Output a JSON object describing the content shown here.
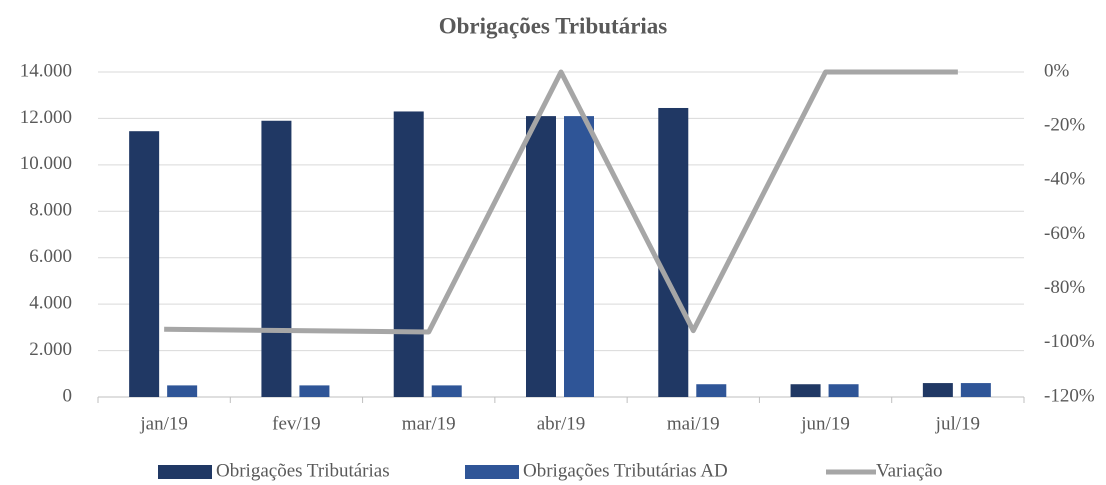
{
  "chart_data": {
    "type": "bar",
    "title": "Obrigações Tributárias",
    "categories": [
      "jan/19",
      "fev/19",
      "mar/19",
      "abr/19",
      "mai/19",
      "jun/19",
      "jul/19"
    ],
    "series": [
      {
        "name": "Obrigações Tributárias",
        "color": "#203864",
        "values": [
          11450,
          11900,
          12300,
          12100,
          12450,
          550,
          600
        ]
      },
      {
        "name": "Obrigações Tributárias AD",
        "color": "#2f5597",
        "values": [
          500,
          500,
          500,
          12100,
          550,
          550,
          600
        ]
      },
      {
        "name": "Variação",
        "type": "line",
        "axis": "y2",
        "color": "#a6a6a6",
        "values": [
          -95,
          -95.5,
          -96,
          0,
          -95.5,
          0,
          0
        ]
      }
    ],
    "ylim": [
      0,
      14000
    ],
    "yticks": [
      0,
      {
        "value": 2000,
        "label": "2.000"
      },
      {
        "value": 4000,
        "label": "4.000"
      },
      {
        "value": 6000,
        "label": "6.000"
      },
      {
        "value": 8000,
        "label": "8.000"
      },
      {
        "value": 10000,
        "label": "10.000"
      },
      {
        "value": 12000,
        "label": "12.000"
      },
      {
        "value": 14000,
        "label": "14.000"
      }
    ],
    "y2lim": [
      -120,
      0
    ],
    "y2ticks": [
      {
        "value": -120,
        "label": "-120%"
      },
      {
        "value": -100,
        "label": "-100%"
      },
      {
        "value": -80,
        "label": "-80%"
      },
      {
        "value": -60,
        "label": "-60%"
      },
      {
        "value": -40,
        "label": "-40%"
      },
      {
        "value": -20,
        "label": "-20%"
      },
      {
        "value": 0,
        "label": "0%"
      }
    ],
    "grid": true,
    "legend": "bottom"
  }
}
